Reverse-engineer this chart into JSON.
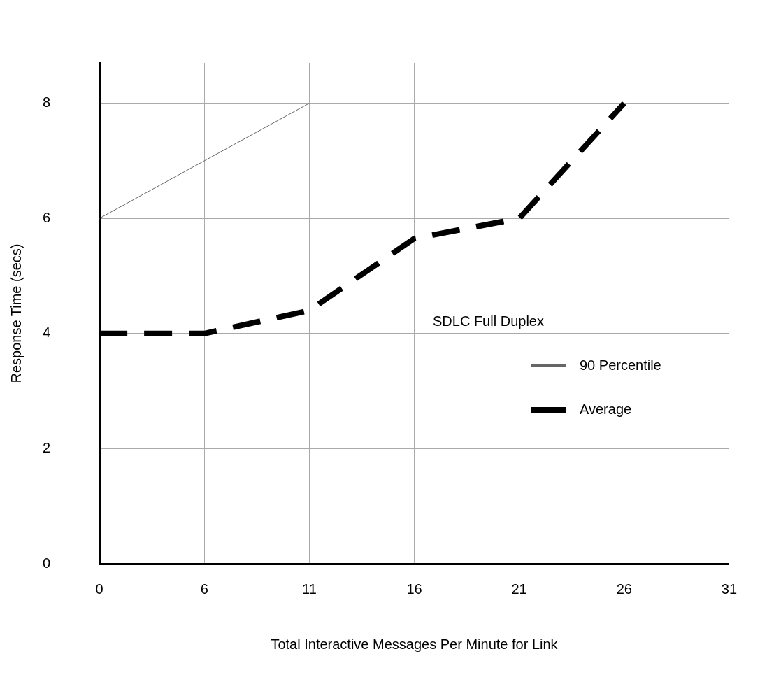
{
  "chart_data": {
    "type": "line",
    "xlabel": "Total Interactive Messages Per Minute for Link",
    "ylabel": "Response Time (secs)",
    "categories": [
      "0",
      "6",
      "11",
      "16",
      "21",
      "26",
      "31"
    ],
    "ylim": [
      0,
      8.7
    ],
    "yticks": [
      0,
      2,
      4,
      6,
      8
    ],
    "grid": true,
    "legend": "right",
    "legend_title": "SDLC Full Duplex",
    "marker": "none",
    "series": [
      {
        "name": "90 Percentile",
        "color": "#666666",
        "line_style": "solid",
        "values": [
          6,
          7,
          8,
          null,
          null,
          null,
          null
        ]
      },
      {
        "name": "Average",
        "color": "#000000",
        "line_style": "dashed",
        "values": [
          4,
          4,
          4.4,
          5.65,
          6,
          8,
          null
        ]
      }
    ]
  }
}
